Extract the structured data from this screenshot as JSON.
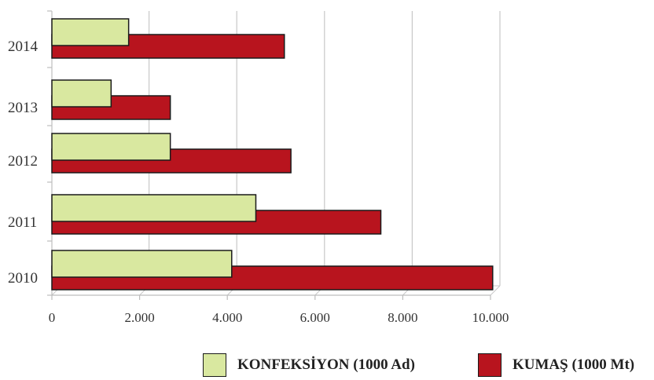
{
  "chart_data": {
    "type": "bar",
    "orientation": "horizontal",
    "categories": [
      "2014",
      "2013",
      "2012",
      "2011",
      "2010"
    ],
    "series": [
      {
        "name": "KONFEKSİYON (1000 Ad)",
        "values": [
          1750,
          1350,
          2700,
          4650,
          4100
        ],
        "color": "#d9e8a0"
      },
      {
        "name": "KUMAŞ (1000 Mt)",
        "values": [
          5300,
          2700,
          5450,
          7500,
          10050
        ],
        "color": "#b8141e"
      }
    ],
    "x_ticks": [
      "0",
      "2.000",
      "4.000",
      "6.000",
      "8.000",
      "10.000"
    ],
    "x_tick_values": [
      0,
      2000,
      4000,
      6000,
      8000,
      10000
    ],
    "xlim": [
      0,
      10000
    ],
    "grid": true,
    "legend_position": "bottom",
    "title": "",
    "xlabel": "",
    "ylabel": ""
  }
}
